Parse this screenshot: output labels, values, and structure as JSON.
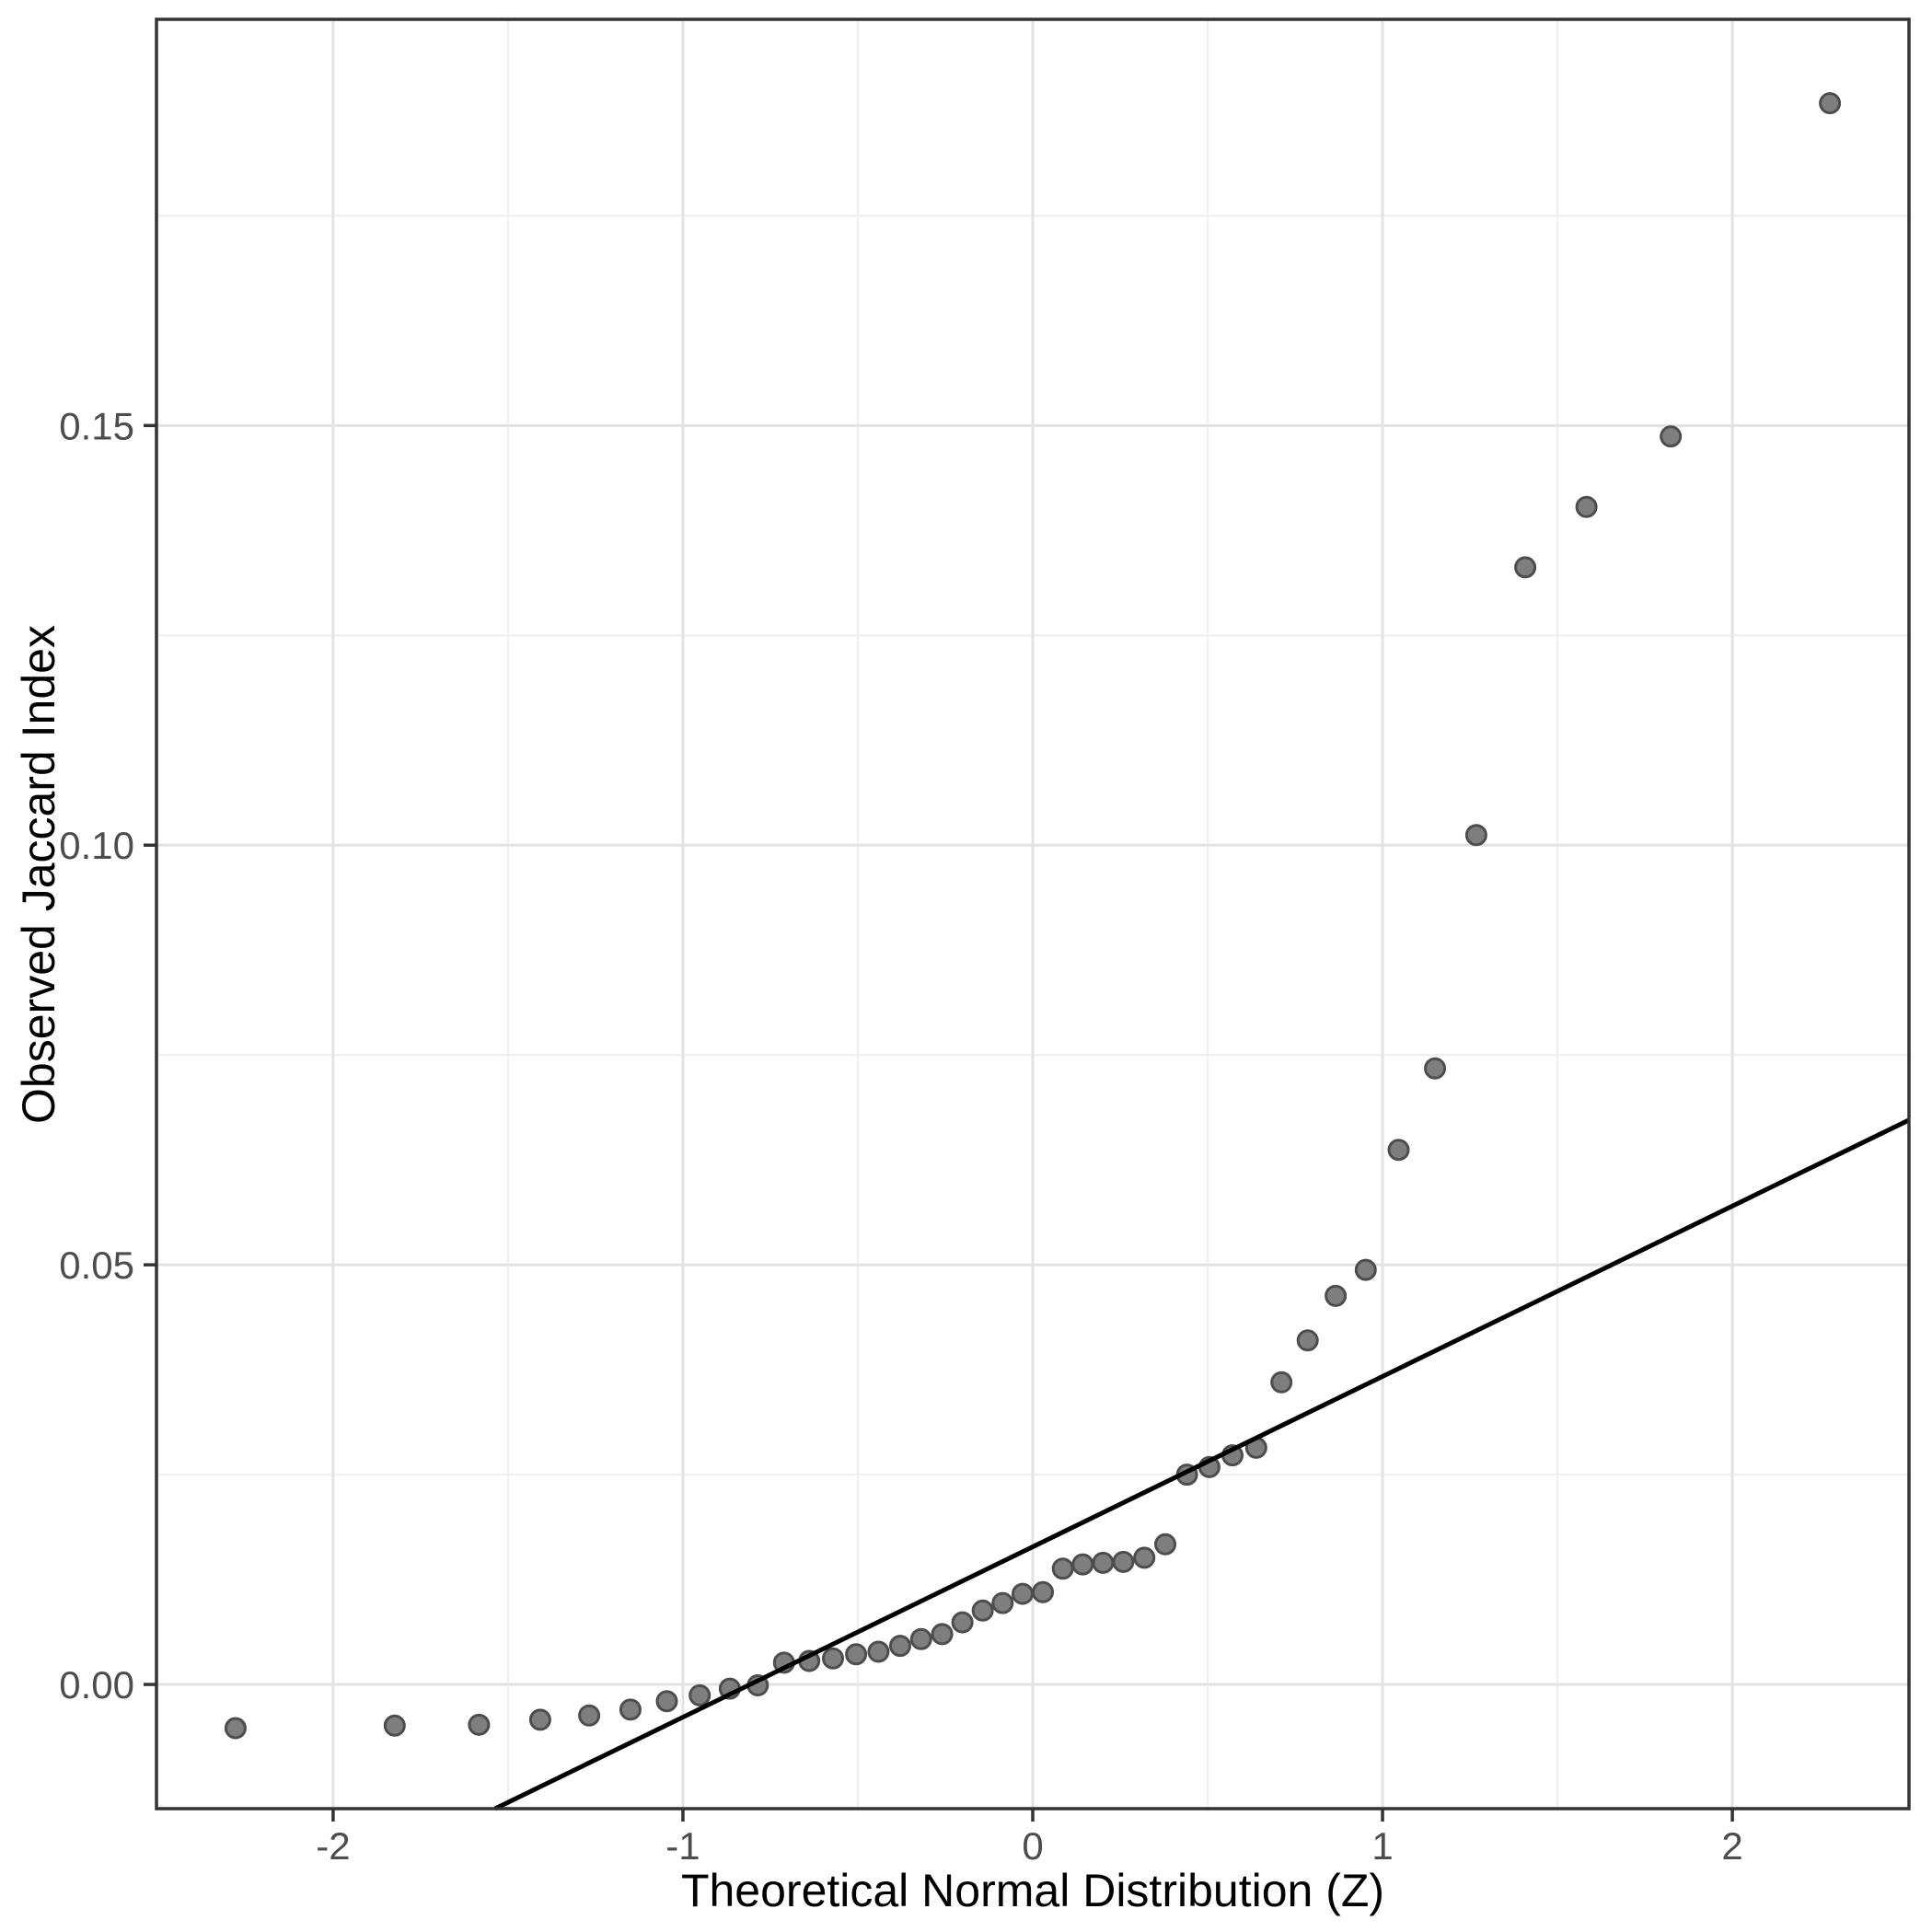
{
  "chart_data": {
    "type": "scatter",
    "subtype": "qq-plot",
    "title": "",
    "xlabel": "Theoretical Normal Distribution (Z)",
    "ylabel": "Observed Jaccard Index",
    "xlim": [
      -2.505,
      2.505
    ],
    "ylim": [
      -0.0148,
      0.1984
    ],
    "grid": "on",
    "legend": "none",
    "x_ticks": [
      {
        "v": -2,
        "label": "-2"
      },
      {
        "v": -1,
        "label": "-1"
      },
      {
        "v": 0,
        "label": "0"
      },
      {
        "v": 1,
        "label": "1"
      },
      {
        "v": 2,
        "label": "2"
      }
    ],
    "y_ticks": [
      {
        "v": 0.0,
        "label": "0.00"
      },
      {
        "v": 0.05,
        "label": "0.05"
      },
      {
        "v": 0.1,
        "label": "0.10"
      },
      {
        "v": 0.15,
        "label": "0.15"
      }
    ],
    "x_minor_ticks": [
      -1.5,
      -0.5,
      0.5,
      1.5
    ],
    "y_minor_ticks": [
      0.025,
      0.075,
      0.125,
      0.175
    ],
    "points": [
      {
        "x": -2.279,
        "y": -0.0052
      },
      {
        "x": -1.824,
        "y": -0.0049
      },
      {
        "x": -1.583,
        "y": -0.0048
      },
      {
        "x": -1.408,
        "y": -0.0042
      },
      {
        "x": -1.268,
        "y": -0.0037
      },
      {
        "x": -1.15,
        "y": -0.003
      },
      {
        "x": -1.046,
        "y": -0.002
      },
      {
        "x": -0.952,
        "y": -0.0013
      },
      {
        "x": -0.866,
        "y": -0.0005
      },
      {
        "x": -0.786,
        "y": -0.0001
      },
      {
        "x": -0.711,
        "y": 0.0026
      },
      {
        "x": -0.639,
        "y": 0.0028
      },
      {
        "x": -0.571,
        "y": 0.0031
      },
      {
        "x": -0.505,
        "y": 0.0036
      },
      {
        "x": -0.441,
        "y": 0.0039
      },
      {
        "x": -0.379,
        "y": 0.0046
      },
      {
        "x": -0.319,
        "y": 0.0054
      },
      {
        "x": -0.259,
        "y": 0.006
      },
      {
        "x": -0.201,
        "y": 0.0074
      },
      {
        "x": -0.143,
        "y": 0.0088
      },
      {
        "x": -0.086,
        "y": 0.0097
      },
      {
        "x": -0.029,
        "y": 0.0108
      },
      {
        "x": 0.029,
        "y": 0.011
      },
      {
        "x": 0.086,
        "y": 0.0138
      },
      {
        "x": 0.143,
        "y": 0.0143
      },
      {
        "x": 0.201,
        "y": 0.0145
      },
      {
        "x": 0.259,
        "y": 0.0146
      },
      {
        "x": 0.319,
        "y": 0.0151
      },
      {
        "x": 0.379,
        "y": 0.0167
      },
      {
        "x": 0.441,
        "y": 0.025
      },
      {
        "x": 0.505,
        "y": 0.0259
      },
      {
        "x": 0.571,
        "y": 0.0273
      },
      {
        "x": 0.639,
        "y": 0.0282
      },
      {
        "x": 0.711,
        "y": 0.036
      },
      {
        "x": 0.786,
        "y": 0.041
      },
      {
        "x": 0.866,
        "y": 0.0463
      },
      {
        "x": 0.952,
        "y": 0.0494
      },
      {
        "x": 1.046,
        "y": 0.0637
      },
      {
        "x": 1.15,
        "y": 0.0734
      },
      {
        "x": 1.268,
        "y": 0.1012
      },
      {
        "x": 1.408,
        "y": 0.1331
      },
      {
        "x": 1.583,
        "y": 0.1403
      },
      {
        "x": 1.824,
        "y": 0.1487
      },
      {
        "x": 2.279,
        "y": 0.1884
      }
    ],
    "reference_line": {
      "slope": 0.0203,
      "intercept": 0.0164
    },
    "style": {
      "background": "#ffffff",
      "panel_background": "#ffffff",
      "panel_border": "#333333",
      "grid_major": "#e3e3e3",
      "grid_minor": "#f1f1f1",
      "point_fill": "#7e7e7e",
      "point_stroke": "#4d4d4d",
      "line_color": "#000000",
      "tick_color": "#333333",
      "tick_label_color": "#4d4d4d",
      "axis_title_color": "#000000"
    }
  }
}
